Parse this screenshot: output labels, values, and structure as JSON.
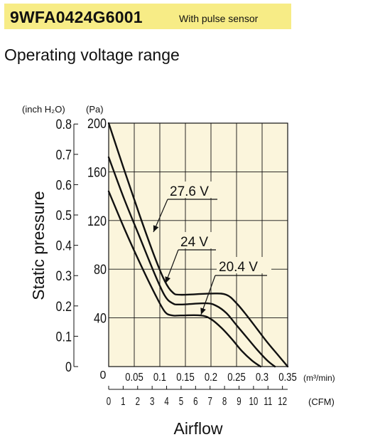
{
  "header": {
    "model": "9WFA0424G6001",
    "note": "With pulse sensor"
  },
  "subtitle": "Operating voltage range",
  "chart_data": {
    "type": "line",
    "xlabel": "Airflow",
    "ylabel": "Static pressure",
    "x_unit": "(m³/min)",
    "x2_unit": "(CFM)",
    "y_unit_left": "(inch H₂O)",
    "y_unit_right": "(Pa)",
    "xlim": [
      0,
      0.35
    ],
    "ylim": [
      0,
      200
    ],
    "x_ticks": [
      "0.05",
      "0.1",
      "0.15",
      "0.2",
      "0.25",
      "0.3",
      "0.35"
    ],
    "x_tick_values": [
      0.05,
      0.1,
      0.15,
      0.2,
      0.25,
      0.3,
      0.35
    ],
    "x2_ticks": [
      "0",
      "1",
      "2",
      "3",
      "4",
      "5",
      "6",
      "7",
      "8",
      "9",
      "10",
      "11",
      "12"
    ],
    "x2_tick_values": [
      0,
      1,
      2,
      3,
      4,
      5,
      6,
      7,
      8,
      9,
      10,
      11,
      12
    ],
    "y_ticks_pa": [
      "0",
      "40",
      "80",
      "120",
      "160",
      "200"
    ],
    "y_ticks_pa_values": [
      0,
      40,
      80,
      120,
      160,
      200
    ],
    "y_ticks_inch": [
      "0",
      "0.1",
      "0.2",
      "0.3",
      "0.4",
      "0.5",
      "0.6",
      "0.7",
      "0.8"
    ],
    "y_ticks_inch_values": [
      0,
      0.1,
      0.2,
      0.3,
      0.4,
      0.5,
      0.6,
      0.7,
      0.8
    ],
    "grid": true,
    "series": [
      {
        "name": "27.6 V",
        "x": [
          0,
          0.03,
          0.06,
          0.09,
          0.11,
          0.125,
          0.14,
          0.2,
          0.23,
          0.25,
          0.27,
          0.29,
          0.31,
          0.33,
          0.35
        ],
        "y": [
          200,
          162,
          125,
          90,
          70,
          61,
          59,
          60,
          59,
          52,
          42,
          31,
          20,
          10,
          0
        ]
      },
      {
        "name": "24 V",
        "x": [
          0,
          0.03,
          0.06,
          0.09,
          0.11,
          0.125,
          0.14,
          0.19,
          0.21,
          0.23,
          0.25,
          0.27,
          0.29,
          0.31,
          0.325
        ],
        "y": [
          172,
          138,
          107,
          76,
          58,
          52,
          51,
          52,
          50,
          44,
          34,
          24,
          14,
          5,
          0
        ]
      },
      {
        "name": "20.4 V",
        "x": [
          0,
          0.03,
          0.06,
          0.09,
          0.11,
          0.125,
          0.14,
          0.18,
          0.2,
          0.22,
          0.24,
          0.26,
          0.28,
          0.297
        ],
        "y": [
          144,
          114,
          86,
          60,
          45,
          42,
          42,
          42,
          39,
          32,
          23,
          13,
          5,
          0
        ]
      }
    ],
    "labels": [
      {
        "text": "27.6 V",
        "series": "27.6 V"
      },
      {
        "text": "24 V",
        "series": "24 V"
      },
      {
        "text": "20.4 V",
        "series": "20.4 V"
      }
    ]
  }
}
